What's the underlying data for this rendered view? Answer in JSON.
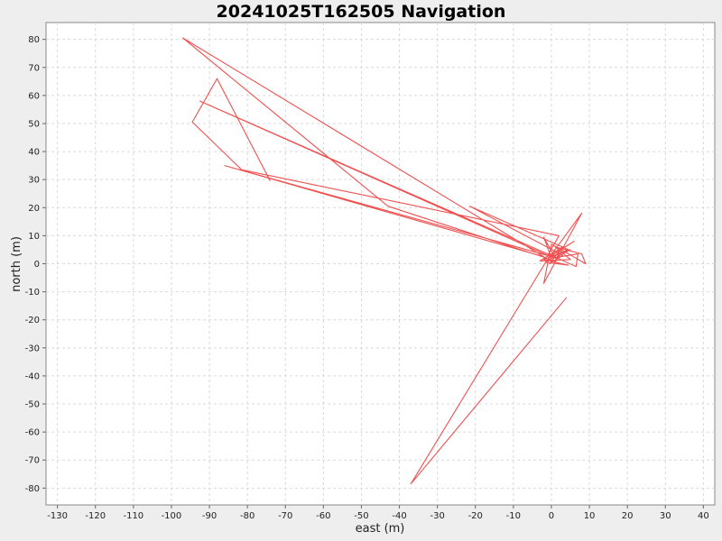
{
  "chart_data": {
    "type": "line",
    "title": "20241025T162505 Navigation",
    "xlabel": "east (m)",
    "ylabel": "north (m)",
    "xlim": [
      -133,
      43
    ],
    "ylim": [
      -86,
      86
    ],
    "xticks": [
      -130,
      -120,
      -110,
      -100,
      -90,
      -80,
      -70,
      -60,
      -50,
      -40,
      -30,
      -20,
      -10,
      0,
      10,
      20,
      30,
      40
    ],
    "yticks": [
      80,
      70,
      60,
      50,
      40,
      30,
      20,
      10,
      0,
      -10,
      -20,
      -30,
      -40,
      -50,
      -60,
      -70,
      -80
    ],
    "grid": true,
    "legend": "none",
    "series": [
      {
        "color": "#f05050",
        "points": [
          [
            -74,
            29.5
          ],
          [
            -88,
            66
          ],
          [
            -94.5,
            50.5
          ],
          [
            -81.5,
            33.5
          ],
          [
            2,
            10
          ],
          [
            -1,
            3
          ],
          [
            -92.5,
            58
          ],
          [
            1.5,
            2
          ],
          [
            -86,
            35
          ],
          [
            -2,
            2.5
          ],
          [
            -97,
            80.5
          ],
          [
            -43,
            20.5
          ],
          [
            1,
            1
          ],
          [
            2,
            4
          ],
          [
            -1.5,
            0.5
          ],
          [
            4.5,
            -0.5
          ],
          [
            -2,
            1.5
          ],
          [
            5,
            5
          ],
          [
            1,
            2
          ],
          [
            -2,
            9.5
          ],
          [
            0,
            2
          ],
          [
            7,
            3.5
          ],
          [
            6.5,
            -1
          ],
          [
            0,
            3
          ],
          [
            6,
            8
          ],
          [
            -1,
            2
          ],
          [
            4.5,
            5
          ],
          [
            -21.5,
            20.5
          ],
          [
            3,
            3
          ],
          [
            -0.5,
            0
          ],
          [
            3,
            6
          ],
          [
            -3,
            1
          ],
          [
            5,
            1.5
          ],
          [
            1,
            6
          ],
          [
            8,
            3.5
          ],
          [
            9,
            0
          ],
          [
            0,
            7
          ],
          [
            -2,
            -7
          ],
          [
            8,
            18
          ],
          [
            -1.5,
            0.5
          ],
          [
            -37,
            -78.5
          ],
          [
            4,
            -12
          ]
        ]
      }
    ]
  }
}
